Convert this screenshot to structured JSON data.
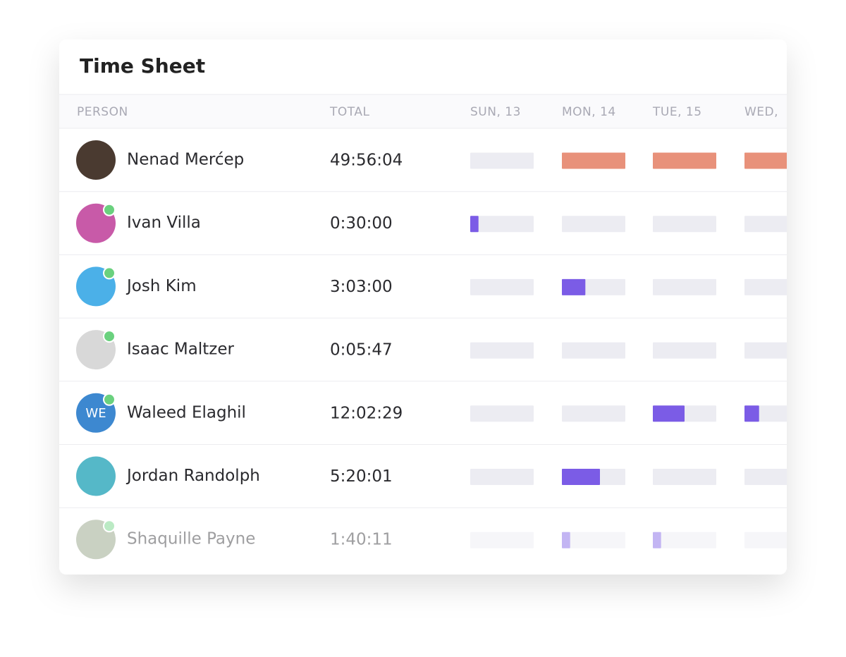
{
  "header": {
    "title": "Time Sheet"
  },
  "table": {
    "columns": [
      "PERSON",
      "TOTAL",
      "SUN, 13",
      "MON, 14",
      "TUE, 15",
      "WED,"
    ],
    "rows": [
      {
        "name": "Nenad Merćep",
        "total": "49:56:04",
        "online": false,
        "bar_color": "#e8917a",
        "days": [
          0,
          1,
          1,
          1
        ]
      },
      {
        "name": "Ivan Villa",
        "total": "0:30:00",
        "online": true,
        "bar_color": "#7b5ce6",
        "days": [
          0.13,
          0,
          0,
          0
        ]
      },
      {
        "name": "Josh Kim",
        "total": "3:03:00",
        "online": true,
        "bar_color": "#7b5ce6",
        "days": [
          0,
          0.37,
          0,
          0
        ]
      },
      {
        "name": "Isaac Maltzer",
        "total": "0:05:47",
        "online": true,
        "bar_color": "#7b5ce6",
        "days": [
          0,
          0,
          0,
          0
        ]
      },
      {
        "name": "Waleed Elaghil",
        "initials": "WE",
        "total": "12:02:29",
        "online": true,
        "bar_color": "#7b5ce6",
        "days": [
          0,
          0,
          0.5,
          0.23
        ]
      },
      {
        "name": "Jordan Randolph",
        "total": "5:20:01",
        "online": false,
        "bar_color": "#7b5ce6",
        "days": [
          0,
          0.6,
          0,
          0
        ]
      },
      {
        "name": "Shaquille Payne",
        "total": "1:40:11",
        "online": true,
        "bar_color": "#7b5ce6",
        "days": [
          0,
          0.13,
          0.13,
          0
        ]
      }
    ]
  }
}
